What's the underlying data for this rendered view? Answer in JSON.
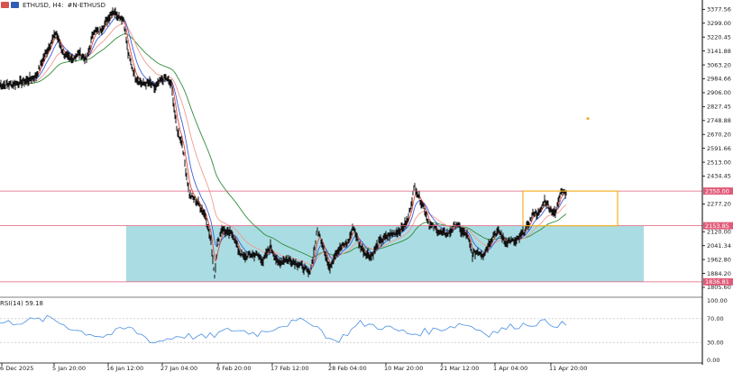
{
  "toolbar": {
    "symbol_label": "ETHUSD, H4:",
    "indicator_label": "#N-ETHUSD",
    "icons": [
      "flag-red-icon",
      "flag-blue-icon"
    ]
  },
  "rsi_panel": {
    "label": "RSI(14) 59.18",
    "levels": [
      "100.00",
      "70.00",
      "30.00",
      "0.00"
    ]
  },
  "price_axis": {
    "ticks": [
      "3377.56",
      "3299.00",
      "3220.45",
      "3141.88",
      "3063.20",
      "2984.66",
      "2906.00",
      "2827.45",
      "2748.88",
      "2670.20",
      "2591.66",
      "2513.00",
      "2434.45",
      "2277.20",
      "2120.00",
      "2041.34",
      "1962.80",
      "1884.20",
      "1805.60"
    ],
    "ymin": 1770,
    "ymax": 3420,
    "tags": [
      {
        "label": "2350.00",
        "value": 2350.0,
        "color": "#e05c7a"
      },
      {
        "label": "2153.85",
        "value": 2153.85,
        "color": "#e05c7a"
      },
      {
        "label": "1836.81",
        "value": 1836.81,
        "color": "#e05c7a"
      }
    ]
  },
  "time_axis": {
    "labels": [
      "6 Dec 2025",
      "5 Jan 20:00",
      "16 Jan 12:00",
      "27 Jan 04:00",
      "6 Feb 20:00",
      "17 Feb 12:00",
      "28 Feb 04:00",
      "10 Mar 20:00",
      "21 Mar 12:00",
      "1 Apr 04:00",
      "11 Apr 20:00"
    ]
  },
  "chart_data": {
    "type": "line",
    "title": "ETHUSD, H4",
    "x": [
      "6 Dec 2025",
      "5 Jan 20:00",
      "16 Jan 12:00",
      "27 Jan 04:00",
      "6 Feb 20:00",
      "17 Feb 12:00",
      "28 Feb 04:00",
      "10 Mar 20:00",
      "21 Mar 12:00",
      "1 Apr 04:00",
      "11 Apr 20:00"
    ],
    "series": [
      {
        "values": [
          2950,
          3200,
          3330,
          2960,
          1990,
          1930,
          2100,
          2330,
          2080,
          2110,
          2380
        ]
      }
    ],
    "ylim": [
      1770,
      3420
    ],
    "horizontal_levels": [
      2350.0,
      2153.85,
      1836.81
    ],
    "zones": [
      {
        "color": "#aadde3",
        "from_x": "16 Jan 12:00",
        "to_x": "after 11 Apr 20:00",
        "low": 1836.81,
        "high": 2153.85
      },
      {
        "color": "#f5b025",
        "from_x": "1 Apr 04:00",
        "to_x": "after 11 Apr 20:00",
        "low": 2153.85,
        "high": 2350.0
      }
    ],
    "rsi": {
      "label": "RSI(14) 59.18",
      "ylim": [
        0,
        100
      ],
      "levels": [
        70,
        30
      ],
      "values": [
        62,
        66,
        70,
        50,
        40,
        55,
        30,
        42,
        38,
        52,
        45,
        60,
        68,
        30,
        62,
        55,
        44,
        52,
        62,
        45,
        58,
        64,
        59
      ]
    }
  },
  "colors": {
    "price": "#111111",
    "ma_fast": "#e2473a",
    "ma_mid": "#3a5fd6",
    "ma_slow": "#2e8b3a",
    "rsi_line": "#4a90e2",
    "level_line": "#e05c7a",
    "zone_fill": "#aadde3",
    "box_stroke": "#f5b025",
    "marker": "#f5a623"
  }
}
